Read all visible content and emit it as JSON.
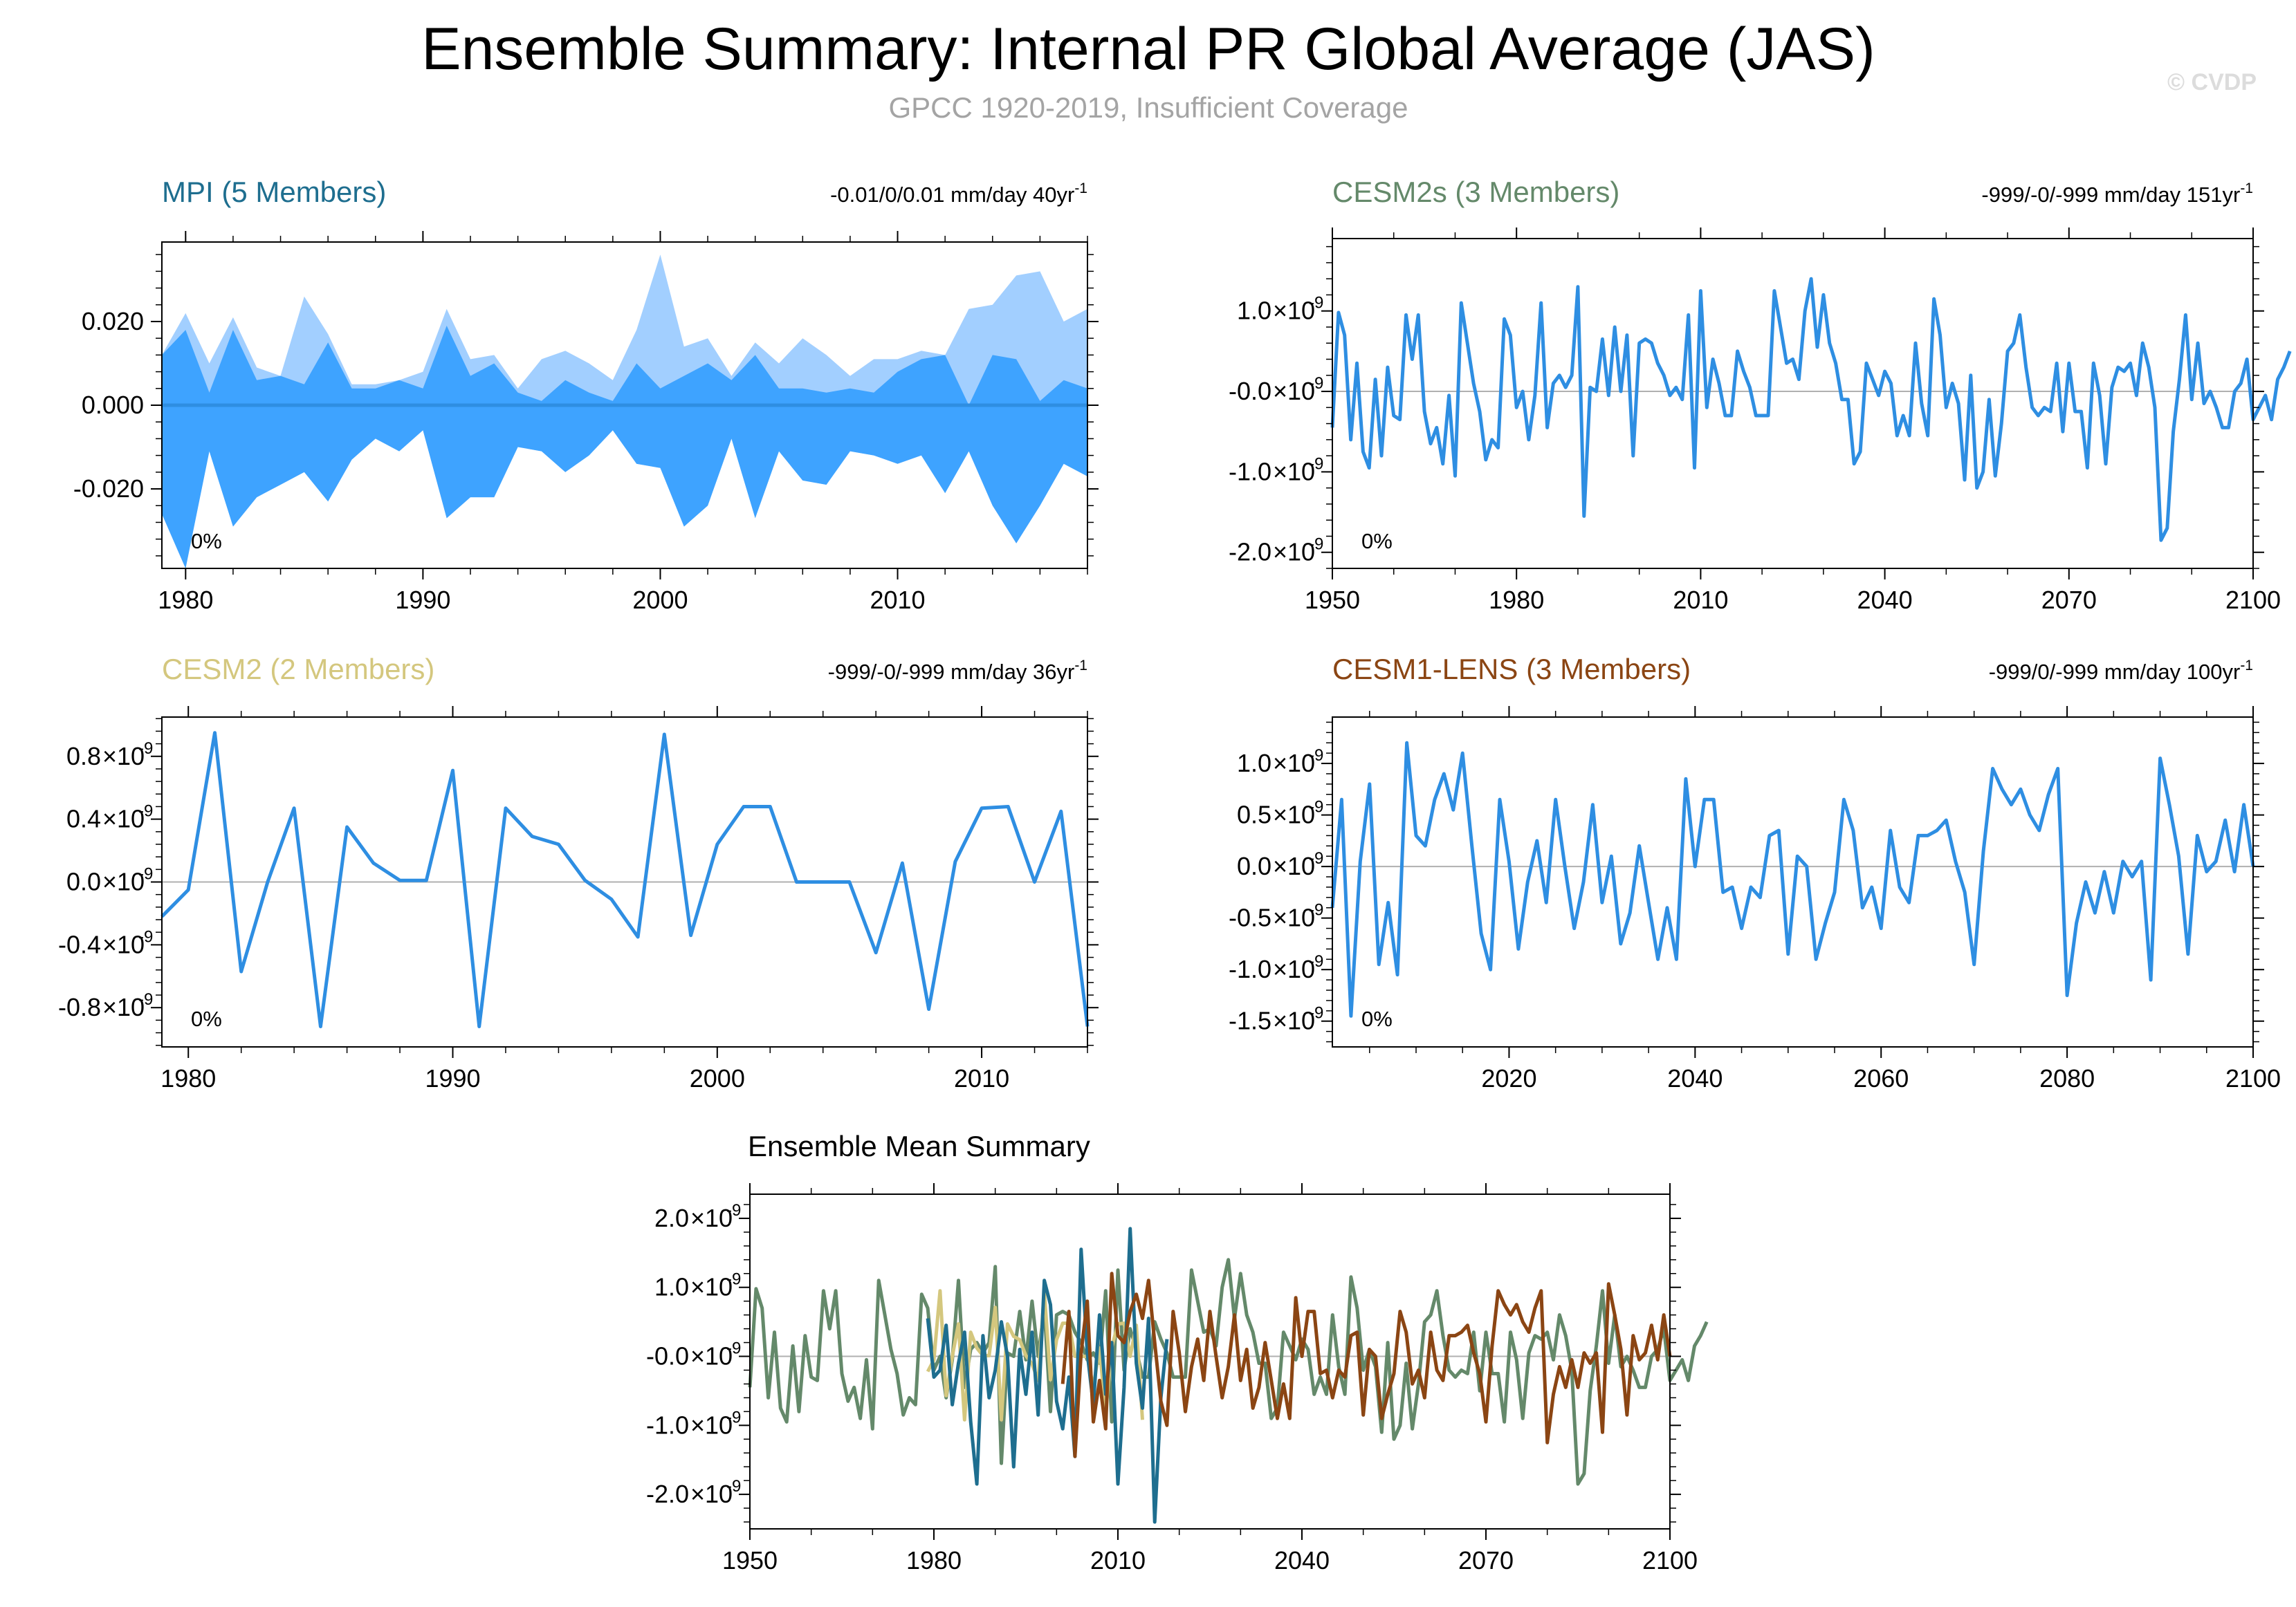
{
  "figure": {
    "title": "Ensemble Summary: Internal PR Global Average (JAS)",
    "subtitle": "GPCC 1920-2019, Insufficient Coverage",
    "copyright": "© CVDP"
  },
  "colors": {
    "mpi": "#1e6e8f",
    "cesm2s": "#64896a",
    "cesm2": "#d4c77e",
    "cesm1": "#8b4513",
    "series_blue": "#2e8ee2",
    "band_light": "#a2cfff",
    "band_dark": "#3ea3ff"
  },
  "chart_data": [
    {
      "id": "mpi",
      "type": "area",
      "title": "MPI (5 Members)",
      "stats_text": "-0.01/0/0.01 mm/day 40yr",
      "stats_sup": "-1",
      "pct_label": "0%",
      "xlim": [
        1979,
        2018
      ],
      "ylim": [
        -0.039,
        0.039
      ],
      "xticks": [
        1980,
        1990,
        2000,
        2010
      ],
      "yticks": [
        0.02,
        0.0,
        -0.02
      ],
      "ytick_labels": [
        "0.020",
        "0.000",
        "-0.020"
      ],
      "x": [
        1979,
        1980,
        1981,
        1982,
        1983,
        1984,
        1985,
        1986,
        1987,
        1988,
        1989,
        1990,
        1991,
        1992,
        1993,
        1994,
        1995,
        1996,
        1997,
        1998,
        1999,
        2000,
        2001,
        2002,
        2003,
        2004,
        2005,
        2006,
        2007,
        2008,
        2009,
        2010,
        2011,
        2012,
        2013,
        2014,
        2015,
        2016,
        2017,
        2018
      ],
      "band_max": [
        0.012,
        0.022,
        0.01,
        0.021,
        0.009,
        0.007,
        0.026,
        0.017,
        0.005,
        0.005,
        0.006,
        0.008,
        0.023,
        0.011,
        0.012,
        0.004,
        0.011,
        0.013,
        0.01,
        0.006,
        0.018,
        0.036,
        0.014,
        0.016,
        0.007,
        0.015,
        0.01,
        0.016,
        0.012,
        0.007,
        0.011,
        0.011,
        0.013,
        0.012,
        0.023,
        0.024,
        0.031,
        0.032,
        0.02,
        0.023
      ],
      "ens_upper": [
        0.012,
        0.018,
        0.003,
        0.018,
        0.006,
        0.007,
        0.005,
        0.015,
        0.004,
        0.004,
        0.006,
        0.004,
        0.019,
        0.007,
        0.01,
        0.003,
        0.001,
        0.006,
        0.003,
        0.001,
        0.01,
        0.004,
        0.007,
        0.01,
        0.006,
        0.012,
        0.004,
        0.004,
        0.003,
        0.004,
        0.003,
        0.008,
        0.011,
        0.012,
        0.0,
        0.012,
        0.011,
        0.001,
        0.006,
        0.004
      ],
      "ens_lower": [
        -0.026,
        -0.039,
        -0.011,
        -0.029,
        -0.022,
        -0.019,
        -0.016,
        -0.023,
        -0.013,
        -0.008,
        -0.011,
        -0.006,
        -0.027,
        -0.022,
        -0.022,
        -0.01,
        -0.011,
        -0.016,
        -0.012,
        -0.006,
        -0.014,
        -0.015,
        -0.029,
        -0.024,
        -0.008,
        -0.027,
        -0.011,
        -0.018,
        -0.019,
        -0.011,
        -0.012,
        -0.014,
        -0.012,
        -0.021,
        -0.011,
        -0.024,
        -0.033,
        -0.024,
        -0.014,
        -0.017
      ],
      "mean": [
        0,
        0,
        0,
        0,
        0,
        0,
        0,
        0,
        0,
        0,
        0,
        0,
        0,
        0,
        0,
        0,
        0,
        0,
        0,
        0,
        0,
        0,
        0,
        0,
        0,
        0,
        0,
        0,
        0,
        0,
        0,
        0,
        0,
        0,
        0,
        0,
        0,
        0,
        0,
        0
      ]
    },
    {
      "id": "cesm2s",
      "type": "line",
      "title": "CESM2s (3 Members)",
      "stats_text": "-999/-0/-999 mm/day 151yr",
      "stats_sup": "-1",
      "pct_label": "0%",
      "xlim": [
        1950,
        2100
      ],
      "ylim": [
        -2.2,
        1.9
      ],
      "ytick_exp": "-9",
      "xticks": [
        1950,
        1980,
        2010,
        2040,
        2070,
        2100
      ],
      "yticks": [
        1.0,
        0.0,
        -1.0,
        -2.0
      ],
      "ytick_labels": [
        "1.0",
        "-0.0",
        "-1.0",
        "-2.0"
      ],
      "x0": 1950,
      "values": [
        -0.45,
        0.98,
        0.7,
        -0.6,
        0.35,
        -0.75,
        -0.95,
        0.15,
        -0.8,
        0.3,
        -0.3,
        -0.35,
        0.95,
        0.4,
        0.95,
        -0.25,
        -0.65,
        -0.45,
        -0.9,
        -0.05,
        -1.05,
        1.1,
        0.6,
        0.1,
        -0.25,
        -0.85,
        -0.6,
        -0.7,
        0.9,
        0.7,
        -0.2,
        0.0,
        -0.6,
        -0.05,
        1.1,
        -0.45,
        0.1,
        0.2,
        0.05,
        0.2,
        1.3,
        -1.55,
        0.05,
        0.0,
        0.65,
        -0.05,
        0.8,
        0.0,
        0.7,
        -0.8,
        0.6,
        0.65,
        0.6,
        0.35,
        0.2,
        -0.05,
        0.05,
        -0.1,
        0.95,
        -0.95,
        1.25,
        -0.2,
        0.4,
        0.1,
        -0.3,
        -0.3,
        0.5,
        0.25,
        0.05,
        -0.3,
        -0.3,
        -0.3,
        1.25,
        0.8,
        0.35,
        0.4,
        0.15,
        1.0,
        1.4,
        0.55,
        1.2,
        0.6,
        0.35,
        -0.1,
        -0.1,
        -0.9,
        -0.75,
        0.35,
        0.15,
        -0.05,
        0.25,
        0.1,
        -0.55,
        -0.3,
        -0.55,
        0.6,
        -0.15,
        -0.55,
        1.15,
        0.7,
        -0.2,
        0.1,
        -0.15,
        -1.1,
        0.2,
        -1.2,
        -1.0,
        -0.1,
        -1.05,
        -0.4,
        0.5,
        0.6,
        0.95,
        0.3,
        -0.2,
        -0.3,
        -0.2,
        -0.25,
        0.35,
        -0.5,
        0.35,
        -0.25,
        -0.25,
        -0.95,
        0.35,
        -0.05,
        -0.9,
        0.05,
        0.3,
        0.25,
        0.35,
        -0.05,
        0.6,
        0.3,
        -0.2,
        -1.85,
        -1.7,
        -0.5,
        0.15,
        0.95,
        -0.1,
        0.6,
        -0.15,
        0.0,
        -0.2,
        -0.45,
        -0.45,
        0.0,
        0.1,
        0.4,
        -0.35,
        -0.2,
        -0.05,
        -0.35,
        0.15,
        0.3,
        0.5
      ]
    },
    {
      "id": "cesm2",
      "type": "line",
      "title": "CESM2 (2 Members)",
      "stats_text": "-999/-0/-999 mm/day 36yr",
      "stats_sup": "-1",
      "pct_label": "0%",
      "xlim": [
        1979,
        2014
      ],
      "ylim": [
        -1.05,
        1.05
      ],
      "ytick_exp": "-9",
      "xticks": [
        1980,
        1990,
        2000,
        2010
      ],
      "yticks": [
        0.8,
        0.4,
        0.0,
        -0.4,
        -0.8
      ],
      "ytick_labels": [
        "0.8",
        "0.4",
        "0.0",
        "-0.4",
        "-0.8"
      ],
      "x0": 1979,
      "values": [
        -0.22,
        -0.05,
        0.95,
        -0.57,
        0.0,
        0.47,
        -0.92,
        0.35,
        0.12,
        0.01,
        0.01,
        0.71,
        -0.92,
        0.47,
        0.29,
        0.24,
        0.01,
        -0.11,
        -0.35,
        0.94,
        -0.34,
        0.24,
        0.48,
        0.48,
        0.0,
        0.0,
        0.0,
        -0.45,
        0.12,
        -0.81,
        0.13,
        0.47,
        0.48,
        0.0,
        0.45,
        -0.92
      ]
    },
    {
      "id": "cesm1",
      "type": "line",
      "title": "CESM1-LENS (3 Members)",
      "stats_text": "-999/0/-999 mm/day 100yr",
      "stats_sup": "-1",
      "pct_label": "0%",
      "xlim": [
        2001,
        2100
      ],
      "ylim": [
        -1.75,
        1.45
      ],
      "ytick_exp": "-9",
      "xticks": [
        2020,
        2040,
        2060,
        2080,
        2100
      ],
      "yticks": [
        1.0,
        0.5,
        0.0,
        -0.5,
        -1.0,
        -1.5
      ],
      "ytick_labels": [
        "1.0",
        "0.5",
        "0.0",
        "-0.5",
        "-1.0",
        "-1.5"
      ],
      "x0": 2001,
      "values": [
        -0.4,
        0.65,
        -1.45,
        0.05,
        0.8,
        -0.95,
        -0.35,
        -1.05,
        1.2,
        0.3,
        0.2,
        0.65,
        0.9,
        0.55,
        1.1,
        0.2,
        -0.65,
        -1.0,
        0.65,
        0.05,
        -0.8,
        -0.15,
        0.25,
        -0.35,
        0.65,
        0.0,
        -0.6,
        -0.15,
        0.6,
        -0.35,
        0.1,
        -0.75,
        -0.45,
        0.2,
        -0.35,
        -0.9,
        -0.4,
        -0.9,
        0.85,
        0.0,
        0.65,
        0.65,
        -0.25,
        -0.2,
        -0.6,
        -0.2,
        -0.3,
        0.3,
        0.35,
        -0.85,
        0.1,
        0.0,
        -0.9,
        -0.55,
        -0.25,
        0.65,
        0.35,
        -0.4,
        -0.2,
        -0.6,
        0.35,
        -0.2,
        -0.35,
        0.3,
        0.3,
        0.35,
        0.45,
        0.05,
        -0.25,
        -0.95,
        0.15,
        0.95,
        0.75,
        0.6,
        0.75,
        0.5,
        0.35,
        0.7,
        0.95,
        -1.25,
        -0.55,
        -0.15,
        -0.45,
        -0.05,
        -0.45,
        0.05,
        -0.1,
        0.05,
        -1.1,
        1.05,
        0.6,
        0.1,
        -0.85,
        0.3,
        -0.05,
        0.05,
        0.45,
        -0.05,
        0.6,
        0.0
      ]
    },
    {
      "id": "ensemble_mean",
      "type": "line",
      "title": "Ensemble Mean Summary",
      "xlim": [
        1950,
        2100
      ],
      "ylim": [
        -2.5,
        2.35
      ],
      "ytick_exp": "-9",
      "xticks": [
        1950,
        1980,
        2010,
        2040,
        2070,
        2100
      ],
      "yticks": [
        2.0,
        1.0,
        0.0,
        -1.0,
        -2.0
      ],
      "ytick_labels": [
        "2.0",
        "1.0",
        "-0.0",
        "-1.0",
        "-2.0"
      ],
      "series_order": [
        "cesm2s",
        "cesm2",
        "mpi",
        "cesm1"
      ],
      "mpi_series": {
        "x0": 1979,
        "values": [
          0.55,
          -0.3,
          -0.2,
          0.45,
          -0.7,
          -0.1,
          0.35,
          -0.95,
          -1.85,
          0.3,
          -0.6,
          -0.2,
          0.5,
          0.0,
          -1.6,
          0.1,
          -0.55,
          0.35,
          -0.85,
          1.1,
          0.75,
          -0.65,
          -1.05,
          -0.3,
          -1.45,
          1.55,
          0.05,
          -0.7,
          0.6,
          -0.55,
          0.2,
          -1.85,
          -0.45,
          1.85,
          -0.1,
          -0.75,
          0.55,
          -2.4,
          -0.6,
          0.25
        ]
      }
    }
  ]
}
